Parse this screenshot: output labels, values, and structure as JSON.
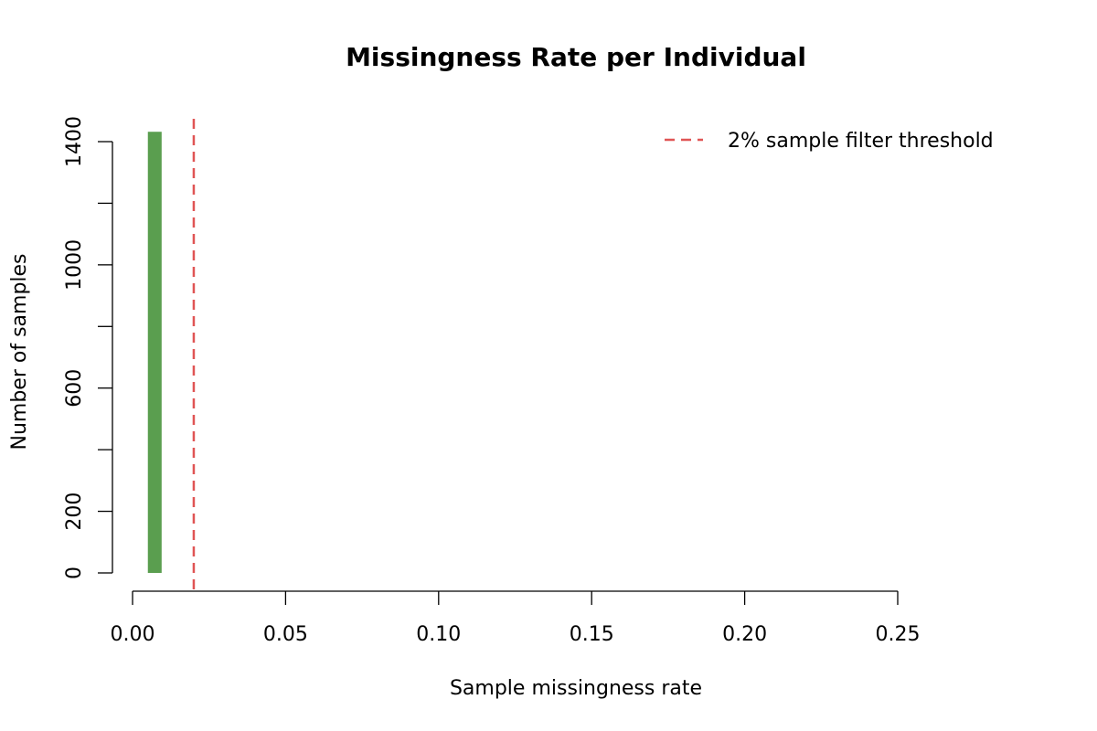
{
  "chart_data": {
    "type": "bar",
    "title": "Missingness Rate per Individual",
    "xlabel": "Sample missingness rate",
    "ylabel": "Number of samples",
    "xlim": [
      0.0,
      0.25
    ],
    "ylim": [
      0,
      1400
    ],
    "x_ticks": [
      "0.00",
      "0.05",
      "0.10",
      "0.15",
      "0.20",
      "0.25"
    ],
    "y_ticks": [
      "0",
      "200",
      "600",
      "1000",
      "1400"
    ],
    "bins": [
      {
        "x0": 0.005,
        "x1": 0.0095,
        "count": 1432
      }
    ],
    "bar_color": "#5A9E4F",
    "threshold": {
      "x": 0.02,
      "label": "2% sample filter threshold",
      "color": "#E05555",
      "style": "dashed"
    },
    "legend_position": "top-right",
    "grid": false
  }
}
